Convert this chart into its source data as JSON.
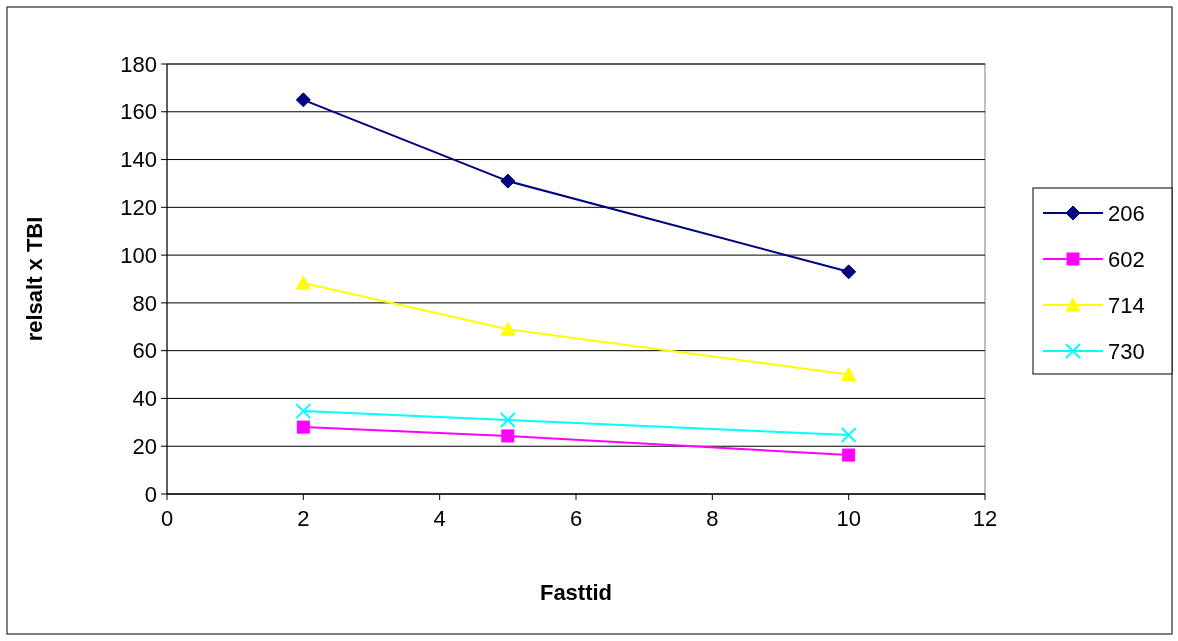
{
  "chart_data": {
    "type": "line",
    "xlabel": "Fasttid",
    "ylabel": "relsalt x TBI",
    "x": [
      2,
      5,
      10
    ],
    "xlim": [
      0,
      12
    ],
    "xticks": [
      0,
      2,
      4,
      6,
      8,
      10,
      12
    ],
    "ylim": [
      0,
      180
    ],
    "yticks": [
      0,
      20,
      40,
      60,
      80,
      100,
      120,
      140,
      160,
      180
    ],
    "grid": "y",
    "legend": "right",
    "line_style": "solid",
    "series": [
      {
        "name": "206",
        "color": "#000080",
        "marker": "diamond",
        "values": [
          165,
          131,
          93
        ]
      },
      {
        "name": "602",
        "color": "#ff00ff",
        "marker": "square",
        "values": [
          28,
          24.3,
          16.3
        ]
      },
      {
        "name": "714",
        "color": "#ffff00",
        "marker": "triangle",
        "values": [
          88.3,
          69,
          50
        ]
      },
      {
        "name": "730",
        "color": "#00ffff",
        "marker": "cross",
        "values": [
          34.7,
          31,
          24.7
        ]
      }
    ]
  }
}
